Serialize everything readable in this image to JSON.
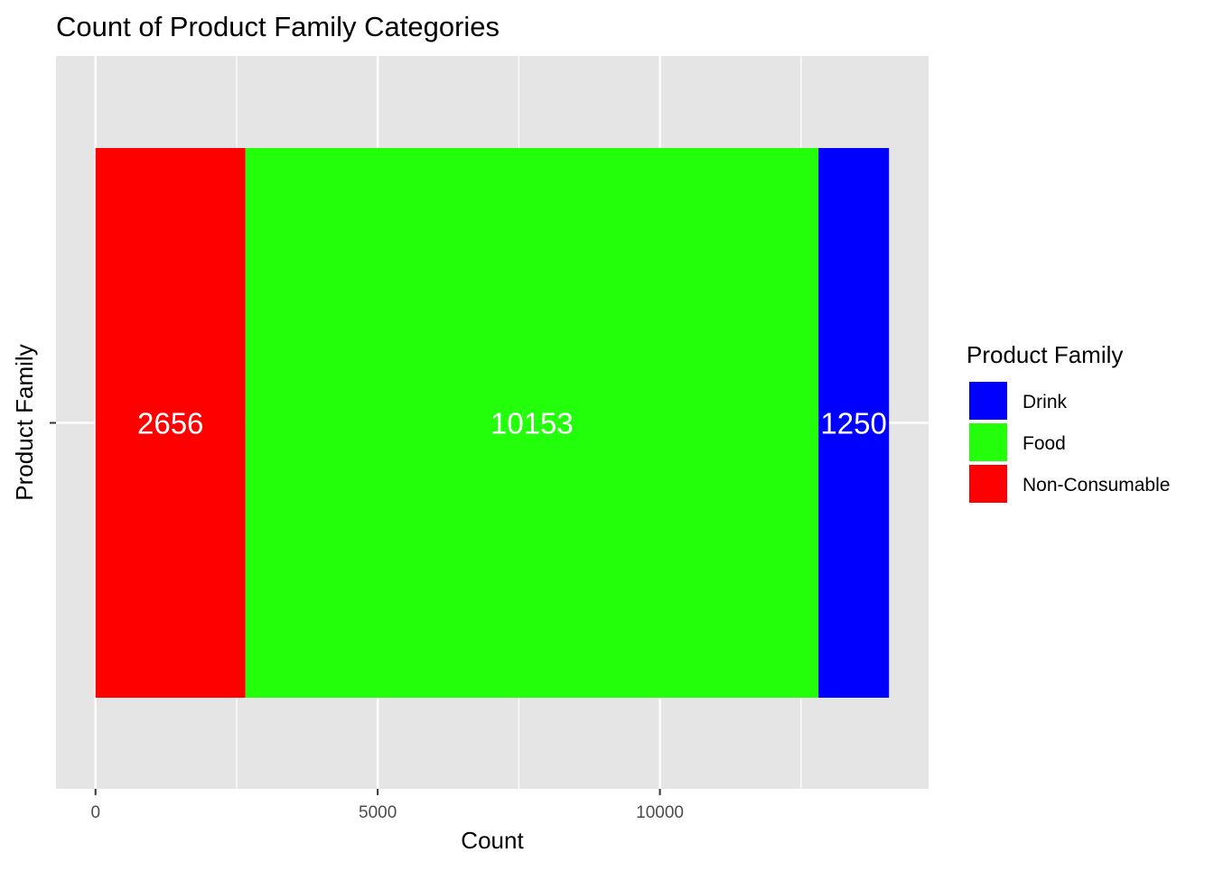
{
  "chart_data": {
    "type": "bar",
    "orientation": "horizontal",
    "stacked": true,
    "title": "Count of Product Family Categories",
    "xlabel": "Count",
    "ylabel": "Product Family",
    "xlim": [
      -700,
      14760
    ],
    "x_ticks": [
      0,
      5000,
      10000
    ],
    "x_tick_labels": [
      "0",
      "5000",
      "10000"
    ],
    "grid": true,
    "stack_order": [
      "Non-Consumable",
      "Food",
      "Drink"
    ],
    "series": [
      {
        "name": "Non-Consumable",
        "value": 2656,
        "color": "#ff0000",
        "label": "2656"
      },
      {
        "name": "Food",
        "value": 10153,
        "color": "#23ff0b",
        "label": "10153"
      },
      {
        "name": "Drink",
        "value": 1250,
        "color": "#0000ff",
        "label": "1250"
      }
    ],
    "legend": {
      "title": "Product Family",
      "position": "right",
      "entries": [
        {
          "label": "Drink",
          "color": "#0000ff"
        },
        {
          "label": "Food",
          "color": "#23ff0b"
        },
        {
          "label": "Non-Consumable",
          "color": "#ff0000"
        }
      ]
    }
  }
}
